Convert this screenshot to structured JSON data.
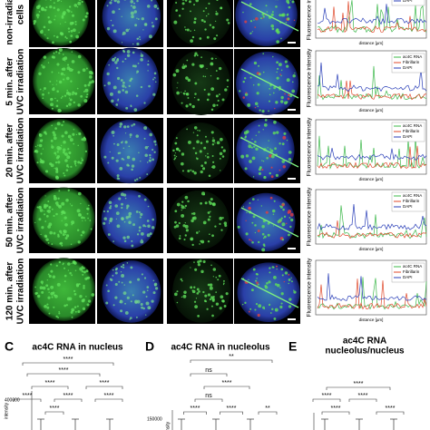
{
  "rows": [
    {
      "label": [
        "non-irradiated",
        "cells"
      ]
    },
    {
      "label": [
        "5 min. after",
        "UVC irradiation"
      ]
    },
    {
      "label": [
        "20 min. after",
        "UVC irradiation"
      ]
    },
    {
      "label": [
        "50 min. after",
        "UVC irradiation"
      ]
    },
    {
      "label": [
        "120 min. after",
        "UVC irradiation"
      ]
    }
  ],
  "profile": {
    "y_label": "Fluorescence intensity",
    "x_label": "distance [µm]",
    "legend": [
      "ac4C RNA",
      "Fibrillarin",
      "DAPI"
    ]
  },
  "panels": [
    {
      "letter": "C",
      "title": [
        "ac4C RNA in nucleus"
      ],
      "ytick": "400000",
      "y_label": "intensity",
      "stars": [
        "****",
        "****",
        "****",
        "****",
        "****",
        "****",
        "****",
        "****"
      ]
    },
    {
      "letter": "D",
      "title": [
        "ac4C RNA in nucleolus"
      ],
      "ytick": "150000",
      "y_label": "intensity",
      "stars": [
        "**",
        "ns",
        "****",
        "ns",
        "****",
        "****",
        "**"
      ]
    },
    {
      "letter": "E",
      "title": [
        "ac4C RNA",
        "nucleolus/nucleus"
      ],
      "stars": [
        "****",
        "****",
        "****",
        "****",
        "****"
      ]
    }
  ]
}
